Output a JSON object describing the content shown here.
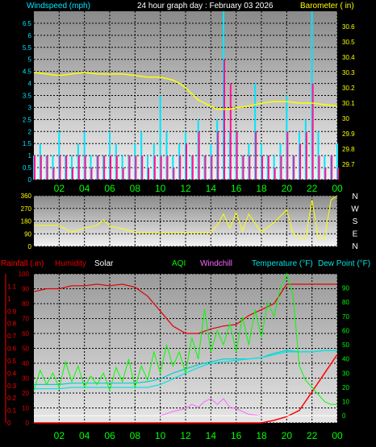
{
  "colors": {
    "background": "#000000",
    "wind_speed": "#00e5ff",
    "wind_gust": "#ff1493",
    "barometer": "#ffff00",
    "direction": "#ffff00",
    "rainfall": "#ff0000",
    "humidity": "#e00000",
    "solar": "#ffffff",
    "aqi": "#00ff00",
    "windchill": "#ff66ff",
    "temperature": "#00cfcf",
    "dew_point": "#00e5e5",
    "x_labels": "#00ff00"
  },
  "header": {
    "windspeed_label": "Windspeed (mph)",
    "title": "24 hour graph day : February 03 2026",
    "barometer_label": "Barometer ( in)"
  },
  "panel3_labels": {
    "rainfall": "Rainfall (.in)",
    "humidity": "Humidity",
    "solar": "Solar",
    "aqi": "AQI",
    "windchill": "Windchill",
    "temperature": "Temperature (°F)",
    "dew_point": "Dew Point (°F)"
  },
  "compass_labels": [
    "N",
    "W",
    "S",
    "E",
    "N"
  ],
  "chart_data": [
    {
      "type": "line",
      "title": "24 hour graph day : February 03 2026",
      "x_ticks": [
        "02",
        "04",
        "06",
        "08",
        "10",
        "12",
        "14",
        "16",
        "18",
        "20",
        "22",
        "00"
      ],
      "x_range_hours": [
        0,
        24
      ],
      "y_left": {
        "label": "Windspeed (mph)",
        "ticks": [
          "0",
          "0.5",
          "1",
          "1.5",
          "2",
          "2.5",
          "3",
          "3.5",
          "4",
          "4.5",
          "5",
          "5.5",
          "6",
          "6.5"
        ],
        "range": [
          0,
          7
        ]
      },
      "y_right": {
        "label": "Barometer ( in)",
        "ticks": [
          "29.7",
          "29.8",
          "29.9",
          "30",
          "30.1",
          "30.2",
          "30.3",
          "30.4",
          "30.5",
          "30.6"
        ],
        "range": [
          29.6,
          30.7
        ]
      },
      "series": [
        {
          "name": "Barometer",
          "axis": "right",
          "x": [
            0,
            1,
            2,
            3,
            4,
            5,
            6,
            7,
            8,
            9,
            10,
            11,
            11.5,
            12,
            12.5,
            13,
            13.5,
            14,
            14.5,
            15,
            15.5,
            16,
            17,
            18,
            19,
            20,
            21,
            22,
            23,
            24
          ],
          "values": [
            30.3,
            30.29,
            30.28,
            30.29,
            30.3,
            30.29,
            30.29,
            30.29,
            30.28,
            30.27,
            30.27,
            30.25,
            30.23,
            30.2,
            30.16,
            30.12,
            30.1,
            30.08,
            30.06,
            30.06,
            30.06,
            30.07,
            30.08,
            30.1,
            30.11,
            30.11,
            30.1,
            30.1,
            30.09,
            30.08
          ]
        },
        {
          "name": "Wind speed",
          "axis": "left",
          "x": [
            0,
            0.5,
            1,
            1.5,
            2,
            2.5,
            3,
            3.5,
            4,
            4.5,
            5,
            5.5,
            6,
            6.5,
            7,
            7.5,
            8,
            8.5,
            9,
            9.5,
            10,
            10.5,
            11,
            11.5,
            12,
            12.5,
            13,
            13.5,
            14,
            14.5,
            15,
            15.5,
            16,
            16.5,
            17,
            17.5,
            18,
            18.5,
            19,
            19.5,
            20,
            20.5,
            21,
            21.5,
            22,
            22.5,
            23,
            23.5,
            24
          ],
          "values": [
            1,
            1.5,
            1,
            1,
            2,
            1,
            1,
            1.5,
            2,
            1,
            1,
            1,
            2,
            1.5,
            1,
            1,
            1.5,
            2,
            1,
            1.5,
            3.5,
            2,
            1,
            1.5,
            2,
            1,
            2.5,
            1,
            1.5,
            2.5,
            7,
            2,
            2,
            1,
            1.5,
            4,
            1.5,
            1,
            1,
            1.5,
            3.5,
            1,
            2,
            2.5,
            7,
            2,
            1,
            1,
            1.5
          ]
        },
        {
          "name": "Wind gust",
          "axis": "left",
          "x": [
            0,
            0.5,
            1,
            1.5,
            2,
            2.5,
            3,
            3.5,
            4,
            4.5,
            5,
            5.5,
            6,
            6.5,
            7,
            7.5,
            8,
            8.5,
            9,
            9.5,
            10,
            10.5,
            11,
            11.5,
            12,
            12.5,
            13,
            13.5,
            14,
            14.5,
            15,
            15.5,
            16,
            16.5,
            17,
            17.5,
            18,
            18.5,
            19,
            19.5,
            20,
            20.5,
            21,
            21.5,
            22,
            22.5,
            23,
            23.5,
            24
          ],
          "values": [
            1,
            1,
            1,
            0.5,
            1,
            1,
            0.5,
            1,
            1,
            0.5,
            1,
            1,
            1,
            1,
            0.5,
            1,
            1,
            1,
            0.5,
            1,
            1,
            1,
            0.5,
            1,
            1.5,
            1,
            2,
            1,
            1,
            2,
            5,
            4,
            2,
            1,
            1,
            2,
            1,
            1,
            0.5,
            1,
            2,
            1,
            1.5,
            2,
            4,
            1,
            0.5,
            1,
            0.5
          ]
        }
      ]
    },
    {
      "type": "line",
      "x_ticks": [
        "02",
        "04",
        "06",
        "08",
        "10",
        "12",
        "14",
        "16",
        "18",
        "20",
        "22",
        "00"
      ],
      "y_left": {
        "ticks": [
          "0",
          "90",
          "180",
          "270",
          "360"
        ],
        "range": [
          0,
          360
        ]
      },
      "series": [
        {
          "name": "Wind direction",
          "x": [
            0,
            1,
            2,
            3,
            4,
            5,
            5.5,
            6,
            7,
            8,
            9,
            10,
            11,
            12,
            13,
            14,
            14.5,
            15,
            15.5,
            16,
            16.5,
            17,
            18,
            19,
            20,
            20.5,
            21,
            21.5,
            22,
            22.5,
            23,
            23.5,
            24
          ],
          "values": [
            150,
            150,
            150,
            100,
            130,
            150,
            190,
            145,
            125,
            100,
            100,
            95,
            100,
            100,
            100,
            100,
            150,
            230,
            130,
            240,
            110,
            230,
            100,
            170,
            260,
            90,
            60,
            60,
            330,
            60,
            60,
            330,
            360
          ]
        }
      ]
    },
    {
      "type": "line",
      "x_ticks": [
        "02",
        "04",
        "06",
        "08",
        "10",
        "12",
        "14",
        "16",
        "18",
        "20",
        "22",
        "00"
      ],
      "y_left_rain": {
        "ticks": [
          "0",
          "0.1",
          "0.2",
          "0.3",
          "0.4",
          "0.5",
          "0.6",
          "0.7",
          "0.8",
          "0.9",
          "1",
          "1.1"
        ],
        "range": [
          0,
          1.2
        ]
      },
      "y_left_humidity": {
        "ticks": [
          "0",
          "10",
          "20",
          "30",
          "40",
          "50",
          "60",
          "70",
          "80",
          "90",
          "100"
        ],
        "range": [
          0,
          100
        ]
      },
      "y_right": {
        "ticks": [
          "0",
          "10",
          "20",
          "30",
          "40",
          "50",
          "60",
          "70",
          "80",
          "90"
        ],
        "range": [
          -5,
          100
        ]
      },
      "series": [
        {
          "name": "Humidity",
          "x": [
            0,
            1,
            2,
            3,
            4,
            5,
            6,
            7,
            8,
            9,
            10,
            11,
            12,
            13,
            14,
            15,
            16,
            17,
            18,
            19,
            20,
            21,
            22,
            23,
            24
          ],
          "values": [
            88,
            90,
            90,
            92,
            92,
            93,
            92,
            93,
            91,
            85,
            75,
            65,
            60,
            60,
            63,
            65,
            66,
            72,
            76,
            80,
            93,
            93,
            93,
            93,
            93
          ]
        },
        {
          "name": "Rainfall",
          "x": [
            0,
            2,
            4,
            6,
            8,
            10,
            12,
            14,
            16,
            17,
            18,
            19,
            20,
            21,
            22,
            23,
            24
          ],
          "values": [
            0,
            0,
            0,
            0,
            0,
            0,
            0,
            0,
            0,
            0,
            0,
            0.02,
            0.05,
            0.1,
            0.25,
            0.4,
            0.55
          ]
        },
        {
          "name": "Temperature",
          "x": [
            0,
            1,
            2,
            3,
            4,
            5,
            6,
            7,
            8,
            9,
            10,
            11,
            12,
            13,
            14,
            15,
            16,
            17,
            18,
            19,
            20,
            21,
            22,
            23,
            24
          ],
          "values": [
            22,
            22,
            22,
            23,
            23,
            23,
            23,
            23,
            23,
            24,
            26,
            30,
            33,
            36,
            38,
            40,
            40,
            40,
            41,
            44,
            46,
            45,
            45,
            46,
            46
          ]
        },
        {
          "name": "Dew Point",
          "x": [
            0,
            1,
            2,
            3,
            4,
            5,
            6,
            7,
            8,
            9,
            10,
            11,
            12,
            13,
            14,
            15,
            16,
            17,
            18,
            19,
            20,
            21,
            22,
            23,
            24
          ],
          "values": [
            19,
            19,
            19,
            20,
            20,
            20,
            20,
            20,
            20,
            20,
            22,
            26,
            30,
            34,
            37,
            38,
            39,
            40,
            41,
            43,
            45,
            45,
            45,
            46,
            46
          ]
        },
        {
          "name": "AQI",
          "x": [
            0,
            0.5,
            1,
            1.5,
            2,
            2.5,
            3,
            3.5,
            4,
            4.5,
            5,
            5.5,
            6,
            6.5,
            7,
            7.5,
            8,
            8.5,
            9,
            9.5,
            10,
            10.5,
            11,
            11.5,
            12,
            12.5,
            13,
            13.5,
            14,
            14.5,
            15,
            15.5,
            16,
            16.5,
            17,
            17.5,
            18,
            18.5,
            19,
            19.5,
            20,
            20.5,
            21,
            21.5,
            22,
            22.5,
            23,
            23.5,
            24
          ],
          "values": [
            18,
            32,
            22,
            30,
            20,
            38,
            24,
            35,
            20,
            28,
            22,
            30,
            18,
            34,
            24,
            40,
            20,
            35,
            25,
            45,
            30,
            50,
            35,
            45,
            30,
            55,
            40,
            75,
            45,
            60,
            50,
            65,
            45,
            70,
            50,
            75,
            55,
            80,
            70,
            90,
            100,
            85,
            35,
            25,
            20,
            15,
            10,
            8,
            8
          ]
        },
        {
          "name": "Windchill",
          "x": [
            10,
            11,
            12,
            12.5,
            13,
            13.5,
            14,
            14.5,
            15,
            15.5,
            16,
            16.5,
            17,
            18
          ],
          "values": [
            0,
            3,
            5,
            8,
            6,
            10,
            12,
            8,
            12,
            6,
            5,
            3,
            1,
            0
          ]
        },
        {
          "name": "Solar",
          "x": [
            0,
            24
          ],
          "values": [
            0,
            0
          ]
        }
      ]
    }
  ]
}
